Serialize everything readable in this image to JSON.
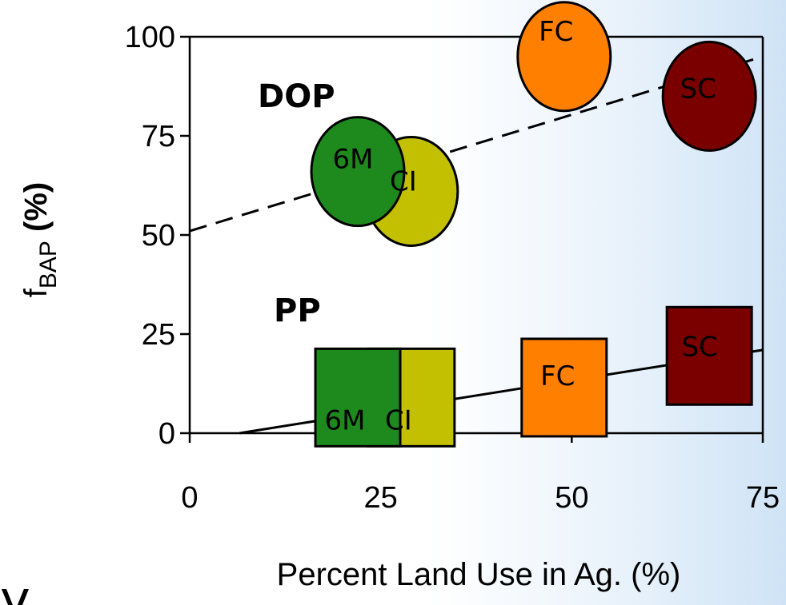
{
  "chart_data": {
    "type": "scatter",
    "xlabel": "Percent Land Use in Ag. (%)",
    "ylabel_main": "f",
    "ylabel_sub": "BAP",
    "ylabel_unit": " (%)",
    "xlim": [
      0,
      75
    ],
    "ylim": [
      0,
      100
    ],
    "xticks": [
      "0",
      "25",
      "50",
      "75"
    ],
    "yticks": [
      "0",
      "25",
      "50",
      "75",
      "100"
    ],
    "grid": false,
    "bottom_left_fragment": "y",
    "series": [
      {
        "name": "DOP",
        "marker": "ellipse",
        "trend": {
          "style": "dashed",
          "x": [
            0,
            75
          ],
          "y": [
            51,
            95
          ]
        },
        "points": [
          {
            "label": "6M",
            "x": 22,
            "y": 66,
            "color": "#1e8a1e"
          },
          {
            "label": "CI",
            "x": 29,
            "y": 61,
            "color": "#c2c000"
          },
          {
            "label": "FC",
            "x": 49,
            "y": 95,
            "color": "#ff8000"
          },
          {
            "label": "SC",
            "x": 68,
            "y": 85,
            "color": "#7a0000"
          }
        ]
      },
      {
        "name": "PP",
        "marker": "square",
        "trend": {
          "style": "solid",
          "x": [
            6.5,
            75
          ],
          "y": [
            0,
            21
          ]
        },
        "points": [
          {
            "label": "6M",
            "x": 22,
            "y": 9,
            "color": "#1e8a1e"
          },
          {
            "label": "CI",
            "x": 29,
            "y": 9,
            "color": "#c2c000"
          },
          {
            "label": "FC",
            "x": 49,
            "y": 11.5,
            "color": "#ff8000"
          },
          {
            "label": "SC",
            "x": 68,
            "y": 19.5,
            "color": "#7a0000"
          }
        ]
      }
    ]
  }
}
